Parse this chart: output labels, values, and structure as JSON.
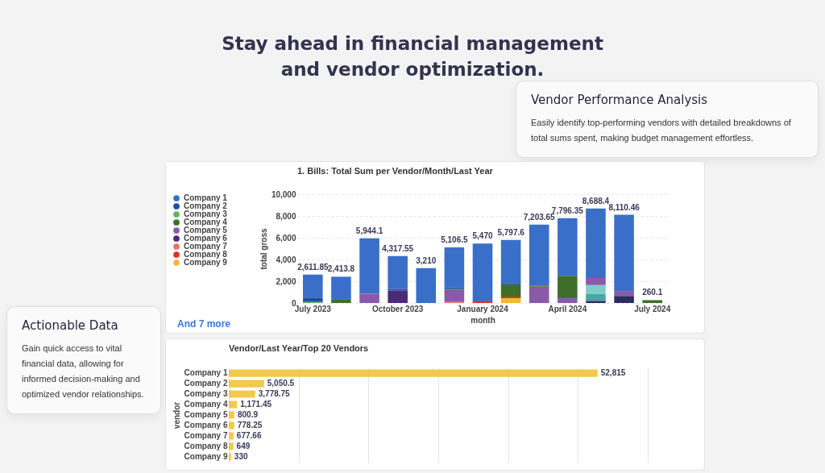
{
  "chart_data": [
    {
      "type": "other",
      "title": "Stay ahead in financial management and vendor optimization.",
      "annotations": [
        "Vendor Performance Analysis",
        "Easily identify top-performing vendors with detailed breakdowns of total sums spent, making budget management effortless.",
        "Actionable Data",
        "Gain quick access to vital financial data, allowing for informed decision-making and optimized vendor relationships."
      ]
    },
    {
      "type": "bar",
      "stacked": true,
      "title": "1. Bills: Total Sum per Vendor/Month/Last Year",
      "xlabel": "month",
      "ylabel": "total gross",
      "categories": [
        "July 2023",
        null,
        null,
        "October 2023",
        null,
        null,
        "January 2024",
        null,
        null,
        "April 2024",
        null,
        null,
        "July 2024"
      ],
      "series": [
        {
          "color": "#2b2d5c",
          "values": [
            null,
            null,
            null,
            null,
            null,
            null,
            null,
            null,
            null,
            null,
            200,
            650,
            null
          ]
        },
        {
          "color": "#4aa5a8",
          "values": [
            null,
            null,
            null,
            null,
            null,
            null,
            null,
            null,
            null,
            null,
            650,
            null,
            null
          ]
        },
        {
          "color": "#7ccdc6",
          "values": [
            null,
            null,
            null,
            null,
            null,
            null,
            null,
            null,
            null,
            null,
            800,
            null,
            null
          ]
        },
        {
          "name": "Company 9",
          "color": "#f2b63c",
          "values": [
            null,
            null,
            null,
            null,
            null,
            null,
            null,
            450,
            null,
            null,
            null,
            null,
            null
          ]
        },
        {
          "name": "Company 8",
          "color": "#d9342b",
          "values": [
            null,
            null,
            null,
            null,
            null,
            null,
            150,
            150,
            null,
            null,
            null,
            null,
            null
          ]
        },
        {
          "name": "Company 7",
          "color": "#e8706e",
          "values": [
            null,
            null,
            null,
            null,
            null,
            100,
            null,
            null,
            null,
            null,
            null,
            null,
            null
          ]
        },
        {
          "name": "Company 6",
          "color": "#4b2a78",
          "values": [
            null,
            null,
            null,
            1150,
            null,
            null,
            null,
            null,
            null,
            null,
            null,
            null,
            null
          ]
        },
        {
          "name": "Company 5",
          "color": "#8a5aa8",
          "values": [
            null,
            null,
            850,
            null,
            null,
            1100,
            null,
            null,
            1500,
            450,
            650,
            450,
            null
          ]
        },
        {
          "name": "Company 4",
          "color": "#3f6e2a",
          "values": [
            null,
            300,
            null,
            null,
            null,
            100,
            null,
            1100,
            100,
            2050,
            null,
            null,
            260.1
          ]
        },
        {
          "name": "Company 3",
          "color": "#5cb85c",
          "values": [
            100,
            null,
            null,
            null,
            null,
            null,
            null,
            null,
            null,
            null,
            null,
            null,
            null
          ]
        },
        {
          "name": "Company 2",
          "color": "#1f4ea8",
          "values": [
            400,
            null,
            null,
            150,
            null,
            150,
            null,
            null,
            null,
            null,
            null,
            null,
            null
          ]
        },
        {
          "name": "Company 1",
          "color": "#3a6fc9",
          "values": [
            2111.85,
            2113.8,
            5094.1,
            3017.55,
            3210,
            3656.5,
            5320,
            4097.6,
            5603.65,
            5296.35,
            6388.4,
            7010.46,
            null
          ]
        }
      ],
      "totals": [
        "2,611.85",
        "2,413.8",
        "5,944.1",
        "4,317.55",
        "3,210",
        "5,106.5",
        "5,470",
        "5,797.6",
        "7,203.65",
        "7,796.35",
        "8,688.4",
        "8,110.46",
        "260.1"
      ],
      "ylim": [
        0,
        10000
      ],
      "yticks": [
        0,
        {
          "value": 2000,
          "label": "2,000"
        },
        {
          "value": 4000,
          "label": "4,000"
        },
        {
          "value": 6000,
          "label": "6,000"
        },
        {
          "value": 8000,
          "label": "8,000"
        },
        {
          "value": 10000,
          "label": "10,000"
        }
      ],
      "grid": "y",
      "legend": "left",
      "annotations": [
        "And 7 more"
      ]
    },
    {
      "type": "bar",
      "orientation": "horizontal",
      "title": "Vendor/Last Year/Top 20 Vendors",
      "ylabel": "vendor",
      "categories": [
        "Company 1",
        "Company 2",
        "Company 3",
        "Company 4",
        "Company 5",
        "Company 6",
        "Company 7",
        "Company 8",
        "Company 9"
      ],
      "values": [
        52815,
        5050.5,
        3778.75,
        1171.45,
        800.9,
        778.25,
        677.66,
        649,
        330
      ],
      "color": "#f2c94c",
      "value_labels": [
        "52,815",
        "5,050.5",
        "3,778.75",
        "1,171.45",
        "800.9",
        "778.25",
        "677.66",
        "649",
        "330"
      ],
      "xlim": [
        0,
        60000
      ],
      "xticks": [
        0,
        10000,
        20000,
        30000,
        40000,
        50000,
        60000
      ],
      "tick_labels": "y",
      "grid": "x"
    }
  ]
}
